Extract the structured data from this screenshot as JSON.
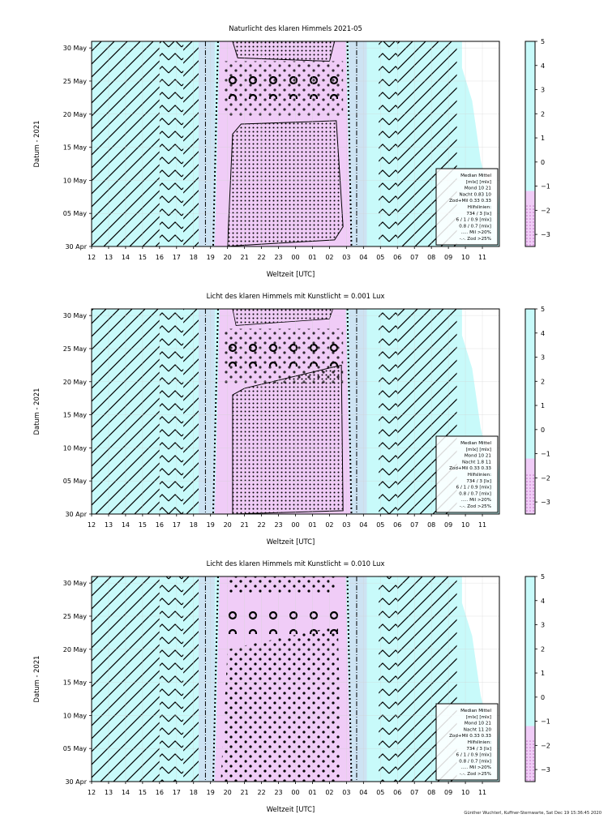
{
  "credit": "Günther Wuchterl, Kuffner-Sternwarte, Sat Dec 19 15:36:45 2020",
  "colors": {
    "twilight": "#c8fafa",
    "night": "#f0ccf7",
    "grid": "#d0d0d0",
    "frame": "#000000",
    "blue_band": "#cde0f2"
  },
  "chart_data": [
    {
      "type": "heatmap",
      "title": "Naturlicht des klaren Himmels 2021-05",
      "xlabel": "Weltzeit [UTC]",
      "ylabel": "Datum - 2021",
      "x_ticks": [
        "12",
        "13",
        "14",
        "15",
        "16",
        "17",
        "18",
        "19",
        "20",
        "21",
        "22",
        "23",
        "00",
        "01",
        "02",
        "03",
        "04",
        "05",
        "06",
        "07",
        "08",
        "09",
        "10",
        "11"
      ],
      "y_ticks": [
        "30 Apr",
        "05 May",
        "10 May",
        "15 May",
        "20 May",
        "25 May",
        "30 May"
      ],
      "y_range_days": [
        0,
        31
      ],
      "colorbar_ticks": [
        "5",
        "4",
        "3",
        "2",
        "1",
        "0",
        "−1",
        "−2",
        "−3"
      ],
      "colorbar_range": [
        -3.5,
        5
      ],
      "legend": [
        "Median Mittel",
        "[mlx]  [mlx]",
        "Mond   10  21",
        "Nacht 0.83  10",
        "Zod+Mil 0.33  0.33",
        "Hilfslinien:",
        "734 / 3  [lx]",
        "6 /  1 / 0.9 [mlx]",
        "0.8 / 0.7 [mlx]",
        "..... Mil >20%",
        "-.-. Zod >25%"
      ],
      "night_start_utc": 19.25,
      "night_end_utc": 27.15
    },
    {
      "type": "heatmap",
      "title": "Licht des klaren Himmels mit Kunstlicht = 0.001 Lux",
      "xlabel": "Weltzeit [UTC]",
      "ylabel": "Datum - 2021",
      "x_ticks": [
        "12",
        "13",
        "14",
        "15",
        "16",
        "17",
        "18",
        "19",
        "20",
        "21",
        "22",
        "23",
        "00",
        "01",
        "02",
        "03",
        "04",
        "05",
        "06",
        "07",
        "08",
        "09",
        "10",
        "11"
      ],
      "y_ticks": [
        "30 Apr",
        "05 May",
        "10 May",
        "15 May",
        "20 May",
        "25 May",
        "30 May"
      ],
      "y_range_days": [
        0,
        31
      ],
      "colorbar_ticks": [
        "5",
        "4",
        "3",
        "2",
        "1",
        "0",
        "−1",
        "−2",
        "−3"
      ],
      "colorbar_range": [
        -3.5,
        5
      ],
      "legend": [
        "Median Mittel",
        "[mlx]  [mlx]",
        "Mond   10  21",
        "Nacht 1.8  11",
        "Zod+Mil 0.33  0.33",
        "Hilfslinien:",
        "734 / 3  [lx]",
        "6 /  1 / 0.9 [mlx]",
        "0.8 / 0.7 [mlx]",
        "..... Mil >20%",
        "-.-. Zod >25%"
      ],
      "night_start_utc": 19.25,
      "night_end_utc": 27.15
    },
    {
      "type": "heatmap",
      "title": "Licht des klaren Himmels mit Kunstlicht = 0.010 Lux",
      "xlabel": "Weltzeit [UTC]",
      "ylabel": "Datum - 2021",
      "x_ticks": [
        "12",
        "13",
        "14",
        "15",
        "16",
        "17",
        "18",
        "19",
        "20",
        "21",
        "22",
        "23",
        "00",
        "01",
        "02",
        "03",
        "04",
        "05",
        "06",
        "07",
        "08",
        "09",
        "10",
        "11"
      ],
      "y_ticks": [
        "30 Apr",
        "05 May",
        "10 May",
        "15 May",
        "20 May",
        "25 May",
        "30 May"
      ],
      "y_range_days": [
        0,
        31
      ],
      "colorbar_ticks": [
        "5",
        "4",
        "3",
        "2",
        "1",
        "0",
        "−1",
        "−2",
        "−3"
      ],
      "colorbar_range": [
        -3.5,
        5
      ],
      "legend": [
        "Median Mittel",
        "[mlx]  [mlx]",
        "Mond   10  21",
        "Nacht  11  20",
        "Zod+Mil 0.33  0.33",
        "Hilfslinien:",
        "734 / 3  [lx]",
        "6 /  1 / 0.9 [mlx]",
        "0.8 / 0.7 [mlx]",
        "..... Mil >20%",
        "-.-. Zod >25%"
      ],
      "night_start_utc": 19.25,
      "night_end_utc": 27.15
    }
  ]
}
